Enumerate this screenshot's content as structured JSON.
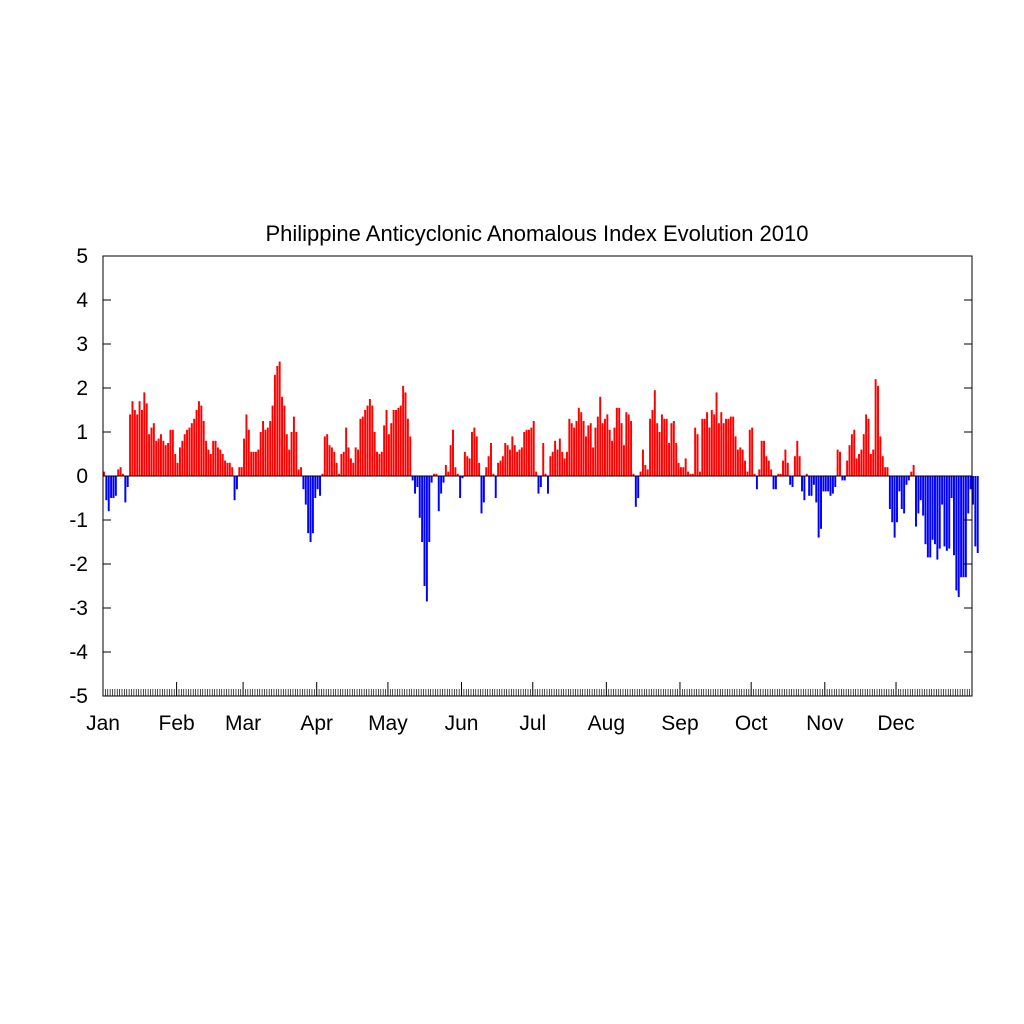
{
  "chart_data": {
    "type": "bar",
    "title": "Philippine Anticyclonic Anomalous Index Evolution 2010",
    "xlabel": "",
    "ylabel": "",
    "ylim": [
      -5,
      5
    ],
    "yticks": [
      "5",
      "4",
      "3",
      "2",
      "1",
      "0",
      "-1",
      "-2",
      "-3",
      "-4",
      "-5"
    ],
    "x_unit": "day of year",
    "xlim": [
      1,
      366
    ],
    "grid": false,
    "legend": "none",
    "positive_color": "#ff0000",
    "negative_color": "#0000ff",
    "months": [
      {
        "label": "Jan",
        "start_day": 1
      },
      {
        "label": "Feb",
        "start_day": 32
      },
      {
        "label": "Mar",
        "start_day": 60
      },
      {
        "label": "Apr",
        "start_day": 91
      },
      {
        "label": "May",
        "start_day": 121
      },
      {
        "label": "Jun",
        "start_day": 152
      },
      {
        "label": "Jul",
        "start_day": 182
      },
      {
        "label": "Aug",
        "start_day": 213
      },
      {
        "label": "Sep",
        "start_day": 244
      },
      {
        "label": "Oct",
        "start_day": 274
      },
      {
        "label": "Nov",
        "start_day": 305
      },
      {
        "label": "Dec",
        "start_day": 335
      }
    ],
    "values": [
      0.1,
      -0.55,
      -0.8,
      -0.5,
      -0.5,
      -0.45,
      0.15,
      0.2,
      0.05,
      -0.6,
      -0.25,
      1.4,
      1.7,
      1.5,
      1.4,
      1.7,
      1.5,
      1.9,
      1.65,
      0.95,
      1.1,
      1.2,
      0.8,
      0.85,
      0.95,
      0.8,
      0.7,
      0.75,
      1.05,
      1.05,
      0.5,
      0.3,
      0.65,
      0.8,
      0.95,
      1.05,
      1.1,
      1.2,
      1.3,
      1.5,
      1.7,
      1.6,
      1.25,
      0.8,
      0.6,
      0.5,
      0.8,
      0.8,
      0.65,
      0.6,
      0.5,
      0.35,
      0.3,
      0.3,
      0.2,
      -0.55,
      -0.3,
      0.2,
      0.2,
      0.85,
      1.4,
      1.05,
      0.55,
      0.55,
      0.55,
      0.6,
      1.0,
      1.25,
      1.05,
      1.1,
      1.25,
      1.6,
      2.3,
      2.5,
      2.6,
      1.8,
      1.6,
      0.95,
      0.6,
      1.0,
      1.35,
      1.0,
      0.15,
      0.2,
      -0.3,
      -0.65,
      -1.3,
      -1.5,
      -1.3,
      -0.5,
      -0.3,
      -0.45,
      0.05,
      0.9,
      0.95,
      0.7,
      0.65,
      0.55,
      0.3,
      0.05,
      0.5,
      0.55,
      1.1,
      0.65,
      0.4,
      0.3,
      0.65,
      0.6,
      1.3,
      1.35,
      1.5,
      1.6,
      1.75,
      1.6,
      1.0,
      0.55,
      0.5,
      0.55,
      1.15,
      1.5,
      0.95,
      1.2,
      1.5,
      1.5,
      1.55,
      1.6,
      2.05,
      1.9,
      1.3,
      0.9,
      -0.1,
      -0.4,
      -0.25,
      -0.95,
      -1.5,
      -2.5,
      -2.85,
      -1.5,
      -0.15,
      0.05,
      0.05,
      -0.8,
      -0.4,
      -0.15,
      0.25,
      0.1,
      0.7,
      1.05,
      0.2,
      0.05,
      -0.5,
      -0.05,
      0.55,
      0.45,
      0.4,
      1.0,
      1.1,
      0.9,
      0.3,
      -0.85,
      -0.6,
      0.2,
      0.45,
      0.75,
      0.05,
      -0.5,
      0.3,
      0.35,
      0.45,
      0.75,
      0.7,
      0.6,
      0.9,
      0.7,
      0.55,
      0.6,
      0.65,
      1.0,
      1.05,
      1.05,
      1.1,
      1.25,
      0.1,
      -0.4,
      -0.25,
      0.75,
      0.05,
      -0.4,
      0.45,
      0.55,
      0.8,
      0.6,
      0.85,
      0.55,
      0.4,
      0.55,
      1.3,
      1.2,
      1.1,
      1.25,
      1.55,
      1.45,
      1.25,
      0.9,
      1.15,
      1.2,
      0.65,
      1.1,
      1.35,
      1.8,
      1.2,
      1.3,
      1.4,
      1.05,
      0.8,
      1.1,
      1.55,
      1.55,
      1.2,
      0.7,
      1.45,
      1.4,
      1.25,
      0.05,
      -0.7,
      -0.5,
      0.1,
      0.6,
      0.25,
      0.15,
      1.3,
      1.5,
      1.95,
      1.2,
      1.0,
      1.4,
      1.3,
      1.3,
      0.75,
      1.2,
      1.25,
      0.75,
      0.3,
      0.2,
      0.2,
      0.4,
      0.1,
      0.05,
      0.05,
      1.1,
      0.95,
      0.1,
      1.3,
      1.3,
      1.45,
      1.1,
      1.5,
      1.4,
      1.9,
      1.2,
      1.45,
      1.2,
      1.3,
      1.3,
      1.35,
      1.35,
      0.9,
      0.6,
      0.65,
      0.6,
      0.35,
      0.1,
      1.05,
      1.1,
      0.05,
      -0.3,
      0.15,
      0.8,
      0.8,
      0.45,
      0.35,
      0.15,
      -0.3,
      -0.3,
      0.05,
      0.05,
      0.35,
      0.6,
      0.3,
      -0.2,
      -0.25,
      0.45,
      0.8,
      0.45,
      -0.35,
      -0.55,
      0.05,
      -0.45,
      -0.45,
      -0.2,
      -0.6,
      -1.4,
      -1.2,
      -0.35,
      -0.35,
      -0.35,
      -0.45,
      -0.4,
      -0.25,
      0.6,
      0.55,
      -0.1,
      -0.1,
      0.35,
      0.7,
      0.95,
      1.05,
      0.4,
      0.5,
      0.6,
      0.95,
      1.4,
      1.3,
      0.5,
      0.6,
      2.2,
      2.05,
      0.9,
      0.45,
      0.2,
      0.2,
      -0.75,
      -1.05,
      -1.4,
      -1.05,
      -0.35,
      -0.75,
      -0.85,
      -0.2,
      -0.1,
      0.1,
      0.25,
      -1.15,
      -0.85,
      -0.55,
      -0.9,
      -1.55,
      -1.85,
      -1.85,
      -1.45,
      -1.55,
      -1.9,
      -1.65,
      -0.65,
      -1.6,
      -1.7,
      -1.65,
      -0.5,
      -1.8,
      -2.6,
      -2.75,
      -2.3,
      -2.3,
      -2.3,
      -0.85,
      -0.3,
      -0.65,
      -1.6,
      -1.75
    ]
  }
}
